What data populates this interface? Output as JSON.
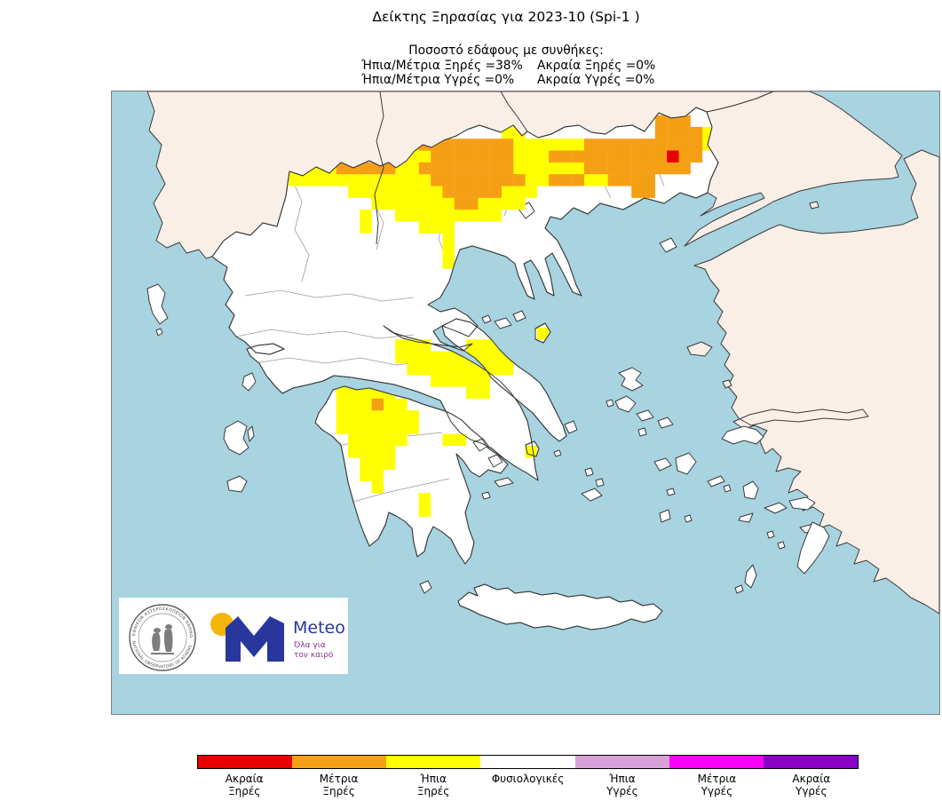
{
  "title": "Δείκτης Ξηρασίας για 2023-10 (Spi-1 )",
  "stats": {
    "heading": "Ποσοστό εδάφους με συνθήκες:",
    "left_column": [
      "Ήπια/Μέτρια Ξηρές =38%",
      "Ήπια/Μέτρια Υγρές =0%"
    ],
    "right_column": [
      "Ακραία Ξηρές =0%",
      "Ακραία Υγρές =0%"
    ]
  },
  "legend": {
    "entries": [
      {
        "label": "Ακραία\nΞηρές",
        "color": "#e80000"
      },
      {
        "label": "Μέτρια\nΞηρές",
        "color": "#f5a014"
      },
      {
        "label": "Ήπια\nΞηρές",
        "color": "#ffff00"
      },
      {
        "label": "Φυσιολογικές",
        "color": "#ffffff"
      },
      {
        "label": "Ήπια\nΥγρές",
        "color": "#d7a1d7"
      },
      {
        "label": "Μέτρια\nΥγρές",
        "color": "#fb00fb"
      },
      {
        "label": "Ακραία\nΥγρές",
        "color": "#8a00c8"
      }
    ]
  },
  "logo": {
    "seal_text_top": "ΕΘΝΙΚΟΝ ΑΣΤΕΡΟΣΚΟΠΕΙΟΝ ΑΘΗΝΩΝ",
    "seal_text_bottom": "NATIONAL OBSERVATORY OF ATHENS",
    "brand": "Meteo",
    "tagline_line1": "Όλα για",
    "tagline_line2": "τον καιρό",
    "brand_color": "#28379e",
    "tagline_color": "#8c2e96",
    "dot_color": "#f5b40a"
  },
  "map": {
    "colors": {
      "sea": "#a8d3e0",
      "foreign_land": "#faefe7",
      "greece_land": "#ffffff",
      "border": "#3a3a3a",
      "mild_dry": "#ffff00",
      "moderate_dry": "#f5a014",
      "extreme_dry": "#e80000"
    },
    "cells": {
      "cell_size": 13.3,
      "yellow": [
        [
          24,
          3
        ],
        [
          25,
          3
        ],
        [
          26,
          3
        ],
        [
          27,
          3
        ],
        [
          33,
          3
        ],
        [
          34,
          3
        ],
        [
          50,
          3
        ],
        [
          23,
          4
        ],
        [
          24,
          4
        ],
        [
          25,
          4
        ],
        [
          34,
          4
        ],
        [
          35,
          4
        ],
        [
          36,
          4
        ],
        [
          37,
          4
        ],
        [
          38,
          4
        ],
        [
          39,
          4
        ],
        [
          50,
          4
        ],
        [
          22,
          5
        ],
        [
          23,
          5
        ],
        [
          24,
          5
        ],
        [
          25,
          5
        ],
        [
          26,
          5
        ],
        [
          34,
          5
        ],
        [
          35,
          5
        ],
        [
          36,
          5
        ],
        [
          15,
          6
        ],
        [
          16,
          6
        ],
        [
          17,
          6
        ],
        [
          18,
          6
        ],
        [
          24,
          6
        ],
        [
          25,
          6
        ],
        [
          34,
          6
        ],
        [
          35,
          6
        ],
        [
          36,
          6
        ],
        [
          37,
          6
        ],
        [
          38,
          6
        ],
        [
          39,
          6
        ],
        [
          15,
          7
        ],
        [
          16,
          7
        ],
        [
          17,
          7
        ],
        [
          18,
          7
        ],
        [
          19,
          7
        ],
        [
          20,
          7
        ],
        [
          21,
          7
        ],
        [
          22,
          7
        ],
        [
          23,
          7
        ],
        [
          24,
          7
        ],
        [
          25,
          7
        ],
        [
          26,
          7
        ],
        [
          35,
          7
        ],
        [
          36,
          7
        ],
        [
          40,
          7
        ],
        [
          41,
          7
        ],
        [
          20,
          8
        ],
        [
          21,
          8
        ],
        [
          22,
          8
        ],
        [
          23,
          8
        ],
        [
          24,
          8
        ],
        [
          25,
          8
        ],
        [
          26,
          8
        ],
        [
          27,
          8
        ],
        [
          33,
          8
        ],
        [
          34,
          8
        ],
        [
          35,
          8
        ],
        [
          22,
          9
        ],
        [
          23,
          9
        ],
        [
          24,
          9
        ],
        [
          25,
          9
        ],
        [
          26,
          9
        ],
        [
          27,
          9
        ],
        [
          28,
          9
        ],
        [
          31,
          9
        ],
        [
          32,
          9
        ],
        [
          33,
          9
        ],
        [
          34,
          9
        ],
        [
          21,
          10
        ],
        [
          24,
          10
        ],
        [
          25,
          10
        ],
        [
          26,
          10
        ],
        [
          27,
          10
        ],
        [
          28,
          10
        ],
        [
          29,
          10
        ],
        [
          30,
          10
        ],
        [
          31,
          10
        ],
        [
          32,
          10
        ],
        [
          21,
          11
        ],
        [
          26,
          11
        ],
        [
          27,
          11
        ],
        [
          28,
          11
        ],
        [
          28,
          12
        ],
        [
          28,
          13
        ],
        [
          28,
          14
        ],
        [
          36,
          20
        ],
        [
          24,
          21
        ],
        [
          25,
          21
        ],
        [
          26,
          21
        ],
        [
          30,
          21
        ],
        [
          31,
          21
        ],
        [
          32,
          21
        ],
        [
          33,
          21
        ],
        [
          24,
          22
        ],
        [
          25,
          22
        ],
        [
          26,
          22
        ],
        [
          27,
          22
        ],
        [
          28,
          22
        ],
        [
          29,
          22
        ],
        [
          30,
          22
        ],
        [
          31,
          22
        ],
        [
          32,
          22
        ],
        [
          33,
          22
        ],
        [
          34,
          22
        ],
        [
          25,
          23
        ],
        [
          26,
          23
        ],
        [
          27,
          23
        ],
        [
          28,
          23
        ],
        [
          29,
          23
        ],
        [
          30,
          23
        ],
        [
          31,
          23
        ],
        [
          32,
          23
        ],
        [
          33,
          23
        ],
        [
          27,
          24
        ],
        [
          28,
          24
        ],
        [
          29,
          24
        ],
        [
          30,
          24
        ],
        [
          31,
          24
        ],
        [
          30,
          25
        ],
        [
          31,
          25
        ],
        [
          19,
          25
        ],
        [
          20,
          25
        ],
        [
          21,
          25
        ],
        [
          22,
          25
        ],
        [
          23,
          25
        ],
        [
          19,
          26
        ],
        [
          20,
          26
        ],
        [
          21,
          26
        ],
        [
          23,
          26
        ],
        [
          24,
          26
        ],
        [
          19,
          27
        ],
        [
          20,
          27
        ],
        [
          21,
          27
        ],
        [
          22,
          27
        ],
        [
          23,
          27
        ],
        [
          24,
          27
        ],
        [
          25,
          27
        ],
        [
          19,
          28
        ],
        [
          20,
          28
        ],
        [
          21,
          28
        ],
        [
          22,
          28
        ],
        [
          23,
          28
        ],
        [
          24,
          28
        ],
        [
          25,
          28
        ],
        [
          20,
          29
        ],
        [
          21,
          29
        ],
        [
          22,
          29
        ],
        [
          23,
          29
        ],
        [
          24,
          29
        ],
        [
          28,
          29
        ],
        [
          29,
          29
        ],
        [
          20,
          30
        ],
        [
          21,
          30
        ],
        [
          22,
          30
        ],
        [
          23,
          30
        ],
        [
          35,
          30
        ],
        [
          21,
          31
        ],
        [
          22,
          31
        ],
        [
          23,
          31
        ],
        [
          21,
          32
        ],
        [
          22,
          32
        ],
        [
          22,
          33
        ],
        [
          26,
          34
        ],
        [
          26,
          35
        ]
      ],
      "orange": [
        [
          46,
          2
        ],
        [
          47,
          2
        ],
        [
          48,
          2
        ],
        [
          46,
          3
        ],
        [
          47,
          3
        ],
        [
          48,
          3
        ],
        [
          49,
          3
        ],
        [
          26,
          4
        ],
        [
          27,
          4
        ],
        [
          28,
          4
        ],
        [
          29,
          4
        ],
        [
          30,
          4
        ],
        [
          31,
          4
        ],
        [
          32,
          4
        ],
        [
          33,
          4
        ],
        [
          40,
          4
        ],
        [
          41,
          4
        ],
        [
          42,
          4
        ],
        [
          43,
          4
        ],
        [
          44,
          4
        ],
        [
          45,
          4
        ],
        [
          46,
          4
        ],
        [
          47,
          4
        ],
        [
          48,
          4
        ],
        [
          49,
          4
        ],
        [
          27,
          5
        ],
        [
          28,
          5
        ],
        [
          29,
          5
        ],
        [
          30,
          5
        ],
        [
          31,
          5
        ],
        [
          32,
          5
        ],
        [
          33,
          5
        ],
        [
          37,
          5
        ],
        [
          38,
          5
        ],
        [
          39,
          5
        ],
        [
          40,
          5
        ],
        [
          41,
          5
        ],
        [
          42,
          5
        ],
        [
          43,
          5
        ],
        [
          44,
          5
        ],
        [
          45,
          5
        ],
        [
          46,
          5
        ],
        [
          48,
          5
        ],
        [
          49,
          5
        ],
        [
          19,
          6
        ],
        [
          20,
          6
        ],
        [
          21,
          6
        ],
        [
          22,
          6
        ],
        [
          23,
          6
        ],
        [
          26,
          6
        ],
        [
          27,
          6
        ],
        [
          28,
          6
        ],
        [
          29,
          6
        ],
        [
          30,
          6
        ],
        [
          31,
          6
        ],
        [
          32,
          6
        ],
        [
          33,
          6
        ],
        [
          40,
          6
        ],
        [
          41,
          6
        ],
        [
          42,
          6
        ],
        [
          43,
          6
        ],
        [
          44,
          6
        ],
        [
          45,
          6
        ],
        [
          46,
          6
        ],
        [
          47,
          6
        ],
        [
          48,
          6
        ],
        [
          27,
          7
        ],
        [
          28,
          7
        ],
        [
          29,
          7
        ],
        [
          30,
          7
        ],
        [
          31,
          7
        ],
        [
          32,
          7
        ],
        [
          33,
          7
        ],
        [
          34,
          7
        ],
        [
          37,
          7
        ],
        [
          38,
          7
        ],
        [
          39,
          7
        ],
        [
          42,
          7
        ],
        [
          43,
          7
        ],
        [
          44,
          7
        ],
        [
          45,
          7
        ],
        [
          28,
          8
        ],
        [
          29,
          8
        ],
        [
          30,
          8
        ],
        [
          31,
          8
        ],
        [
          32,
          8
        ],
        [
          44,
          8
        ],
        [
          45,
          8
        ],
        [
          29,
          9
        ],
        [
          30,
          9
        ],
        [
          22,
          26
        ]
      ],
      "red": [
        [
          47,
          5
        ]
      ]
    }
  }
}
